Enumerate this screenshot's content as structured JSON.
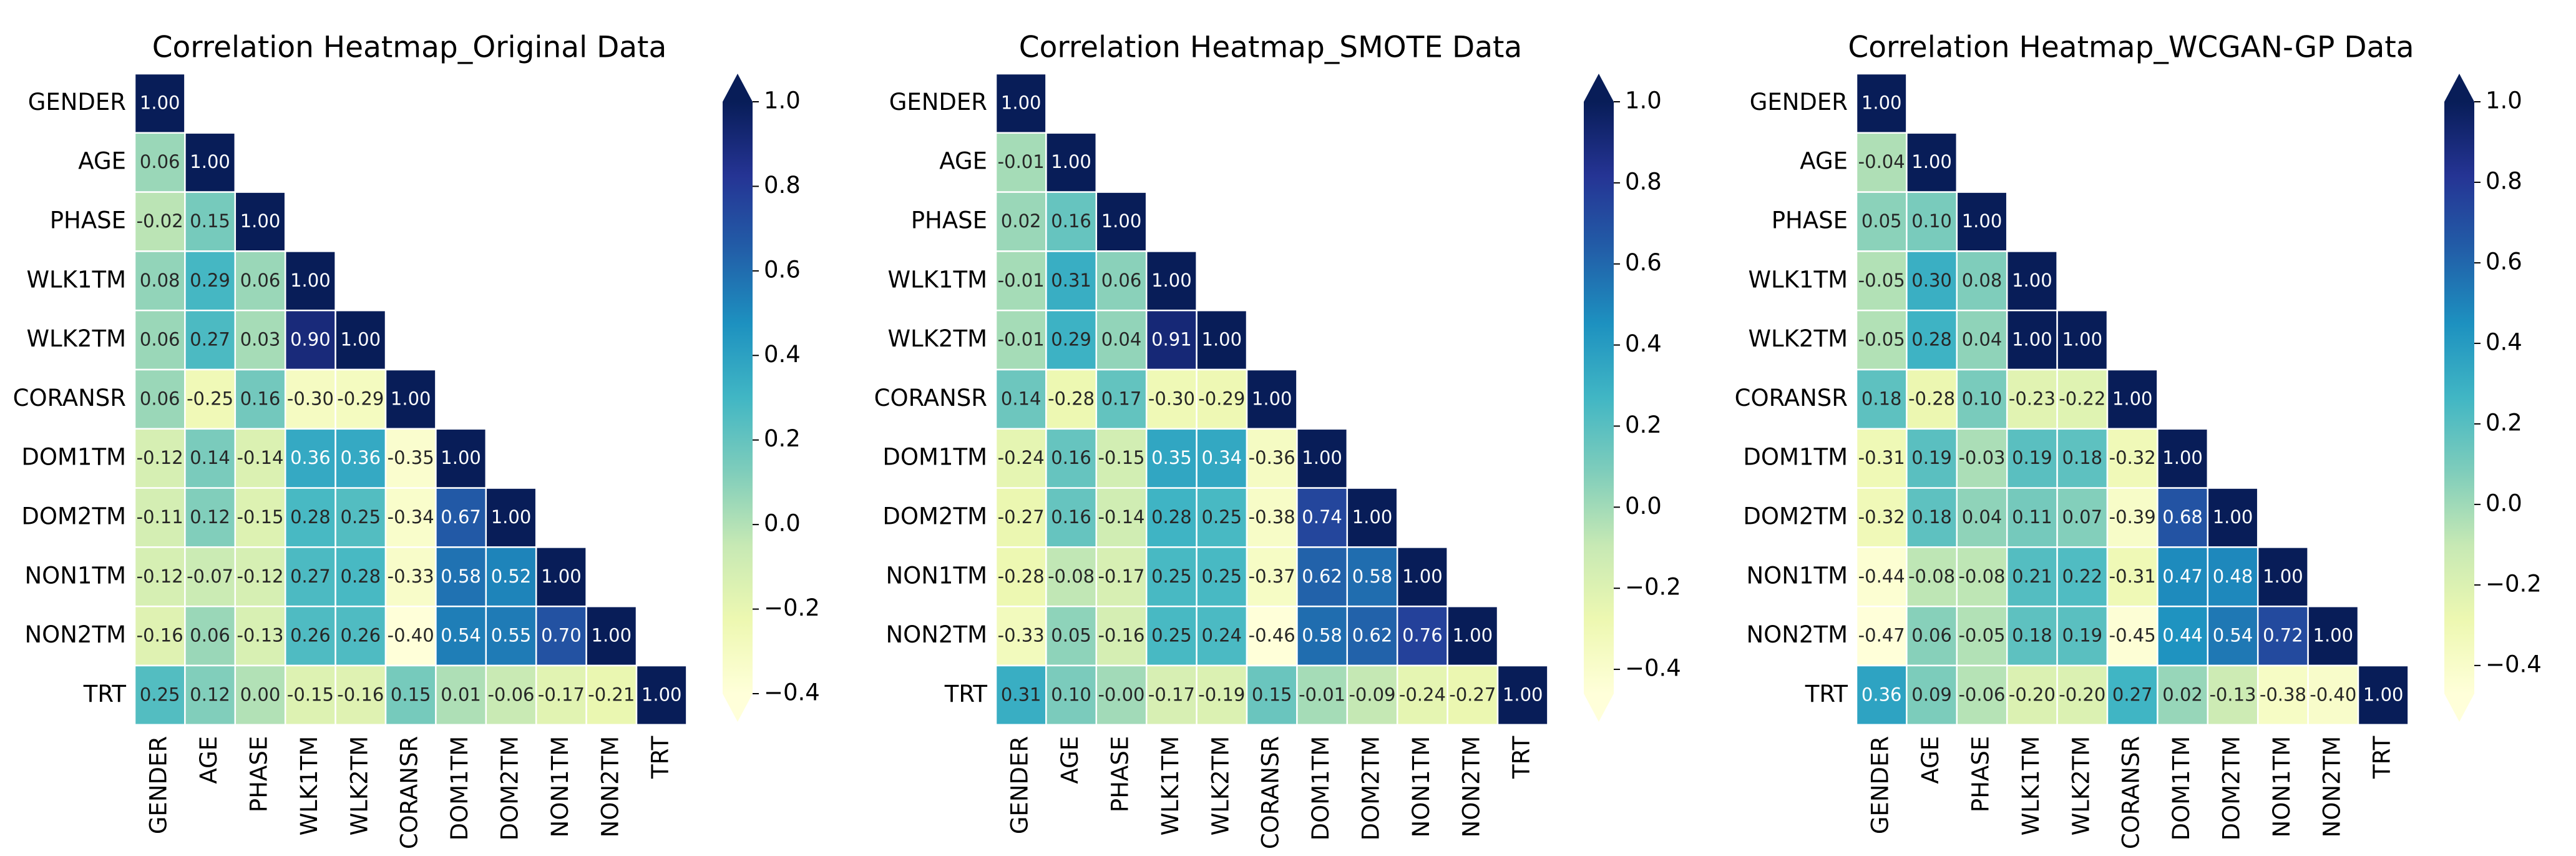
{
  "chart_data": [
    {
      "type": "heatmap",
      "title": "Correlation Heatmap_Original Data",
      "categories": [
        "GENDER",
        "AGE",
        "PHASE",
        "WLK1TM",
        "WLK2TM",
        "CORANSR",
        "DOM1TM",
        "DOM2TM",
        "NON1TM",
        "NON2TM",
        "TRT"
      ],
      "values": [
        [
          1.0
        ],
        [
          0.06,
          1.0
        ],
        [
          -0.02,
          0.15,
          1.0
        ],
        [
          0.08,
          0.29,
          0.06,
          1.0
        ],
        [
          0.06,
          0.27,
          0.03,
          0.9,
          1.0
        ],
        [
          0.06,
          -0.25,
          0.16,
          -0.3,
          -0.29,
          1.0
        ],
        [
          -0.12,
          0.14,
          -0.14,
          0.36,
          0.36,
          -0.35,
          1.0
        ],
        [
          -0.11,
          0.12,
          -0.15,
          0.28,
          0.25,
          -0.34,
          0.67,
          1.0
        ],
        [
          -0.12,
          -0.07,
          -0.12,
          0.27,
          0.28,
          -0.33,
          0.58,
          0.52,
          1.0
        ],
        [
          -0.16,
          0.06,
          -0.13,
          0.26,
          0.26,
          -0.4,
          0.54,
          0.55,
          0.7,
          1.0
        ],
        [
          0.25,
          0.12,
          0.0,
          -0.15,
          -0.16,
          0.15,
          0.01,
          -0.06,
          -0.17,
          -0.21,
          1.0
        ]
      ],
      "value_labels": [
        [
          "1.00"
        ],
        [
          "0.06",
          "1.00"
        ],
        [
          "-0.02",
          "0.15",
          "1.00"
        ],
        [
          "0.08",
          "0.29",
          "0.06",
          "1.00"
        ],
        [
          "0.06",
          "0.27",
          "0.03",
          "0.90",
          "1.00"
        ],
        [
          "0.06",
          "-0.25",
          "0.16",
          "-0.30",
          "-0.29",
          "1.00"
        ],
        [
          "-0.12",
          "0.14",
          "-0.14",
          "0.36",
          "0.36",
          "-0.35",
          "1.00"
        ],
        [
          "-0.11",
          "0.12",
          "-0.15",
          "0.28",
          "0.25",
          "-0.34",
          "0.67",
          "1.00"
        ],
        [
          "-0.12",
          "-0.07",
          "-0.12",
          "0.27",
          "0.28",
          "-0.33",
          "0.58",
          "0.52",
          "1.00"
        ],
        [
          "-0.16",
          "0.06",
          "-0.13",
          "0.26",
          "0.26",
          "-0.40",
          "0.54",
          "0.55",
          "0.70",
          "1.00"
        ],
        [
          "0.25",
          "0.12",
          "0.00",
          "-0.15",
          "-0.16",
          "0.15",
          "0.01",
          "-0.06",
          "-0.17",
          "-0.21",
          "1.00"
        ]
      ],
      "zlim": [
        -0.4,
        1.0
      ],
      "zticks": [
        {
          "value": 1,
          "label": "1.0"
        },
        0.8,
        0.6,
        0.4,
        0.2,
        {
          "value": 0,
          "label": "0.0"
        },
        {
          "value": -0.2,
          "label": "−0.2"
        },
        {
          "value": -0.4,
          "label": "−0.4"
        }
      ],
      "colorscale": [
        "#ffffd9",
        "#edf8b1",
        "#c7e9b4",
        "#7fcdbb",
        "#41b6c4",
        "#1d91c0",
        "#225ea8",
        "#253494",
        "#081d58"
      ]
    },
    {
      "type": "heatmap",
      "title": "Correlation Heatmap_SMOTE Data",
      "categories": [
        "GENDER",
        "AGE",
        "PHASE",
        "WLK1TM",
        "WLK2TM",
        "CORANSR",
        "DOM1TM",
        "DOM2TM",
        "NON1TM",
        "NON2TM",
        "TRT"
      ],
      "values": [
        [
          1.0
        ],
        [
          -0.01,
          1.0
        ],
        [
          0.02,
          0.16,
          1.0
        ],
        [
          -0.01,
          0.31,
          0.06,
          1.0
        ],
        [
          -0.01,
          0.29,
          0.04,
          0.91,
          1.0
        ],
        [
          0.14,
          -0.28,
          0.17,
          -0.3,
          -0.29,
          1.0
        ],
        [
          -0.24,
          0.16,
          -0.15,
          0.35,
          0.34,
          -0.36,
          1.0
        ],
        [
          -0.27,
          0.16,
          -0.14,
          0.28,
          0.25,
          -0.38,
          0.74,
          1.0
        ],
        [
          -0.28,
          -0.08,
          -0.17,
          0.25,
          0.25,
          -0.37,
          0.62,
          0.58,
          1.0
        ],
        [
          -0.33,
          0.05,
          -0.16,
          0.25,
          0.24,
          -0.46,
          0.58,
          0.62,
          0.76,
          1.0
        ],
        [
          0.31,
          0.1,
          0.0,
          -0.17,
          -0.19,
          0.15,
          -0.01,
          -0.09,
          -0.24,
          -0.27,
          1.0
        ]
      ],
      "value_labels": [
        [
          "1.00"
        ],
        [
          "-0.01",
          "1.00"
        ],
        [
          "0.02",
          "0.16",
          "1.00"
        ],
        [
          "-0.01",
          "0.31",
          "0.06",
          "1.00"
        ],
        [
          "-0.01",
          "0.29",
          "0.04",
          "0.91",
          "1.00"
        ],
        [
          "0.14",
          "-0.28",
          "0.17",
          "-0.30",
          "-0.29",
          "1.00"
        ],
        [
          "-0.24",
          "0.16",
          "-0.15",
          "0.35",
          "0.34",
          "-0.36",
          "1.00"
        ],
        [
          "-0.27",
          "0.16",
          "-0.14",
          "0.28",
          "0.25",
          "-0.38",
          "0.74",
          "1.00"
        ],
        [
          "-0.28",
          "-0.08",
          "-0.17",
          "0.25",
          "0.25",
          "-0.37",
          "0.62",
          "0.58",
          "1.00"
        ],
        [
          "-0.33",
          "0.05",
          "-0.16",
          "0.25",
          "0.24",
          "-0.46",
          "0.58",
          "0.62",
          "0.76",
          "1.00"
        ],
        [
          "0.31",
          "0.10",
          "-0.00",
          "-0.17",
          "-0.19",
          "0.15",
          "-0.01",
          "-0.09",
          "-0.24",
          "-0.27",
          "1.00"
        ]
      ],
      "zlim": [
        -0.46,
        1.0
      ],
      "zticks": [
        {
          "value": 1,
          "label": "1.0"
        },
        0.8,
        0.6,
        0.4,
        0.2,
        {
          "value": 0,
          "label": "0.0"
        },
        {
          "value": -0.2,
          "label": "−0.2"
        },
        {
          "value": -0.4,
          "label": "−0.4"
        }
      ],
      "colorscale": [
        "#ffffd9",
        "#edf8b1",
        "#c7e9b4",
        "#7fcdbb",
        "#41b6c4",
        "#1d91c0",
        "#225ea8",
        "#253494",
        "#081d58"
      ]
    },
    {
      "type": "heatmap",
      "title": "Correlation Heatmap_WCGAN-GP Data",
      "categories": [
        "GENDER",
        "AGE",
        "PHASE",
        "WLK1TM",
        "WLK2TM",
        "CORANSR",
        "DOM1TM",
        "DOM2TM",
        "NON1TM",
        "NON2TM",
        "TRT"
      ],
      "values": [
        [
          1.0
        ],
        [
          -0.04,
          1.0
        ],
        [
          0.05,
          0.1,
          1.0
        ],
        [
          -0.05,
          0.3,
          0.08,
          1.0
        ],
        [
          -0.05,
          0.28,
          0.04,
          1.0,
          1.0
        ],
        [
          0.18,
          -0.28,
          0.1,
          -0.23,
          -0.22,
          1.0
        ],
        [
          -0.31,
          0.19,
          -0.03,
          0.19,
          0.18,
          -0.32,
          1.0
        ],
        [
          -0.32,
          0.18,
          0.04,
          0.11,
          0.07,
          -0.39,
          0.68,
          1.0
        ],
        [
          -0.44,
          -0.08,
          -0.08,
          0.21,
          0.22,
          -0.31,
          0.47,
          0.48,
          1.0
        ],
        [
          -0.47,
          0.06,
          -0.05,
          0.18,
          0.19,
          -0.45,
          0.44,
          0.54,
          0.72,
          1.0
        ],
        [
          0.36,
          0.09,
          -0.06,
          -0.2,
          -0.2,
          0.27,
          0.02,
          -0.13,
          -0.38,
          -0.4,
          1.0
        ]
      ],
      "value_labels": [
        [
          "1.00"
        ],
        [
          "-0.04",
          "1.00"
        ],
        [
          "0.05",
          "0.10",
          "1.00"
        ],
        [
          "-0.05",
          "0.30",
          "0.08",
          "1.00"
        ],
        [
          "-0.05",
          "0.28",
          "0.04",
          "1.00",
          "1.00"
        ],
        [
          "0.18",
          "-0.28",
          "0.10",
          "-0.23",
          "-0.22",
          "1.00"
        ],
        [
          "-0.31",
          "0.19",
          "-0.03",
          "0.19",
          "0.18",
          "-0.32",
          "1.00"
        ],
        [
          "-0.32",
          "0.18",
          "0.04",
          "0.11",
          "0.07",
          "-0.39",
          "0.68",
          "1.00"
        ],
        [
          "-0.44",
          "-0.08",
          "-0.08",
          "0.21",
          "0.22",
          "-0.31",
          "0.47",
          "0.48",
          "1.00"
        ],
        [
          "-0.47",
          "0.06",
          "-0.05",
          "0.18",
          "0.19",
          "-0.45",
          "0.44",
          "0.54",
          "0.72",
          "1.00"
        ],
        [
          "0.36",
          "0.09",
          "-0.06",
          "-0.20",
          "-0.20",
          "0.27",
          "0.02",
          "-0.13",
          "-0.38",
          "-0.40",
          "1.00"
        ]
      ],
      "zlim": [
        -0.47,
        1.0
      ],
      "zticks": [
        {
          "value": 1,
          "label": "1.0"
        },
        0.8,
        0.6,
        0.4,
        0.2,
        {
          "value": 0,
          "label": "0.0"
        },
        {
          "value": -0.2,
          "label": "−0.2"
        },
        {
          "value": -0.4,
          "label": "−0.4"
        }
      ],
      "colorscale": [
        "#ffffd9",
        "#edf8b1",
        "#c7e9b4",
        "#7fcdbb",
        "#41b6c4",
        "#1d91c0",
        "#225ea8",
        "#253494",
        "#081d58"
      ]
    }
  ]
}
